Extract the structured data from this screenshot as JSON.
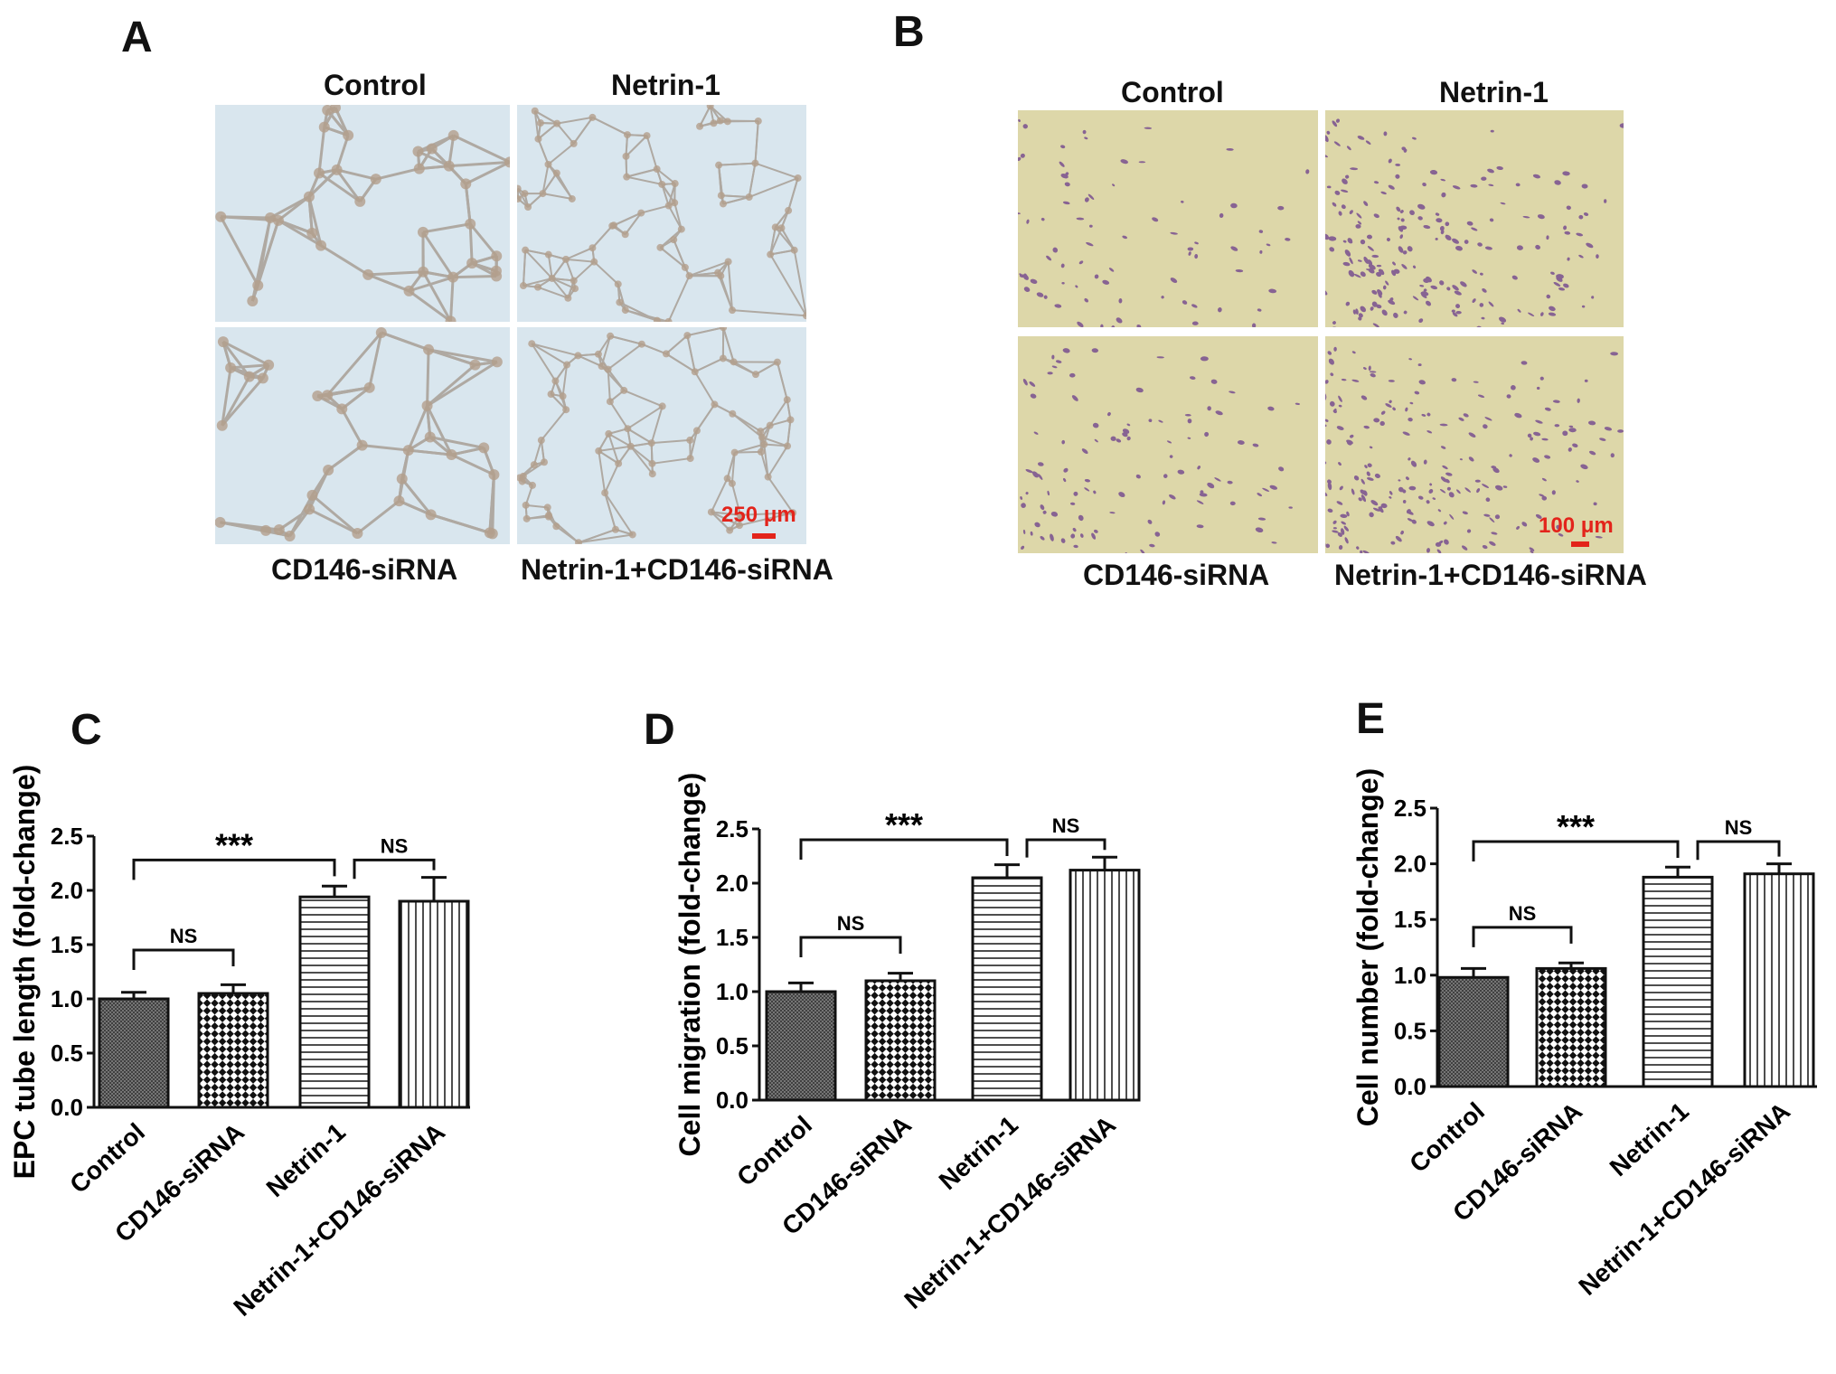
{
  "panels": {
    "A": {
      "letter": "A",
      "col_labels": [
        "Control",
        "Netrin-1"
      ],
      "row_labels": [
        "CD146-siRNA",
        "Netrin-1+CD146-siRNA"
      ],
      "scale_label": "250 μm",
      "tile_color": "#d9e6ee"
    },
    "B": {
      "letter": "B",
      "col_labels": [
        "Control",
        "Netrin-1"
      ],
      "row_labels": [
        "CD146-siRNA",
        "Netrin-1+CD146-siRNA"
      ],
      "scale_label": "100 μm",
      "tile_color": "#ddd7a9",
      "cell_color": "#6b3d8c"
    }
  },
  "chart_data": [
    {
      "letter": "C",
      "type": "bar",
      "ylabel": "EPC tube length (fold-change)",
      "categories": [
        "Control",
        "CD146-siRNA",
        "Netrin-1",
        "Netrin-1+CD146-siRNA"
      ],
      "values": [
        1.0,
        1.05,
        1.94,
        1.9
      ],
      "errors": [
        0.06,
        0.08,
        0.1,
        0.22
      ],
      "patterns": [
        "crosshatch-dense",
        "checker",
        "hlines",
        "vlines"
      ],
      "ylim": [
        0,
        2.5
      ],
      "yticks": [
        "0.0",
        "0.5",
        "1.0",
        "1.5",
        "2.0",
        "2.5"
      ],
      "annotations": [
        {
          "label": "***",
          "from": 0,
          "to": 2,
          "level": 2.28
        },
        {
          "label": "NS",
          "from": 0,
          "to": 1,
          "level": 1.45
        },
        {
          "label": "NS",
          "from": 2,
          "to": 3,
          "level": 2.28
        }
      ]
    },
    {
      "letter": "D",
      "type": "bar",
      "ylabel": "Cell migration (fold-change)",
      "categories": [
        "Control",
        "CD146-siRNA",
        "Netrin-1",
        "Netrin-1+CD146-siRNA"
      ],
      "values": [
        1.0,
        1.1,
        2.05,
        2.12
      ],
      "errors": [
        0.08,
        0.07,
        0.12,
        0.12
      ],
      "patterns": [
        "crosshatch-dense",
        "checker",
        "hlines",
        "vlines"
      ],
      "ylim": [
        0,
        2.5
      ],
      "yticks": [
        "0.0",
        "0.5",
        "1.0",
        "1.5",
        "2.0",
        "2.5"
      ],
      "annotations": [
        {
          "label": "***",
          "from": 0,
          "to": 2,
          "level": 2.4
        },
        {
          "label": "NS",
          "from": 0,
          "to": 1,
          "level": 1.5
        },
        {
          "label": "NS",
          "from": 2,
          "to": 3,
          "level": 2.4
        }
      ]
    },
    {
      "letter": "E",
      "type": "bar",
      "ylabel": "Cell number (fold-change)",
      "categories": [
        "Control",
        "CD146-siRNA",
        "Netrin-1",
        "Netrin-1+CD146-siRNA"
      ],
      "values": [
        0.98,
        1.06,
        1.88,
        1.91
      ],
      "errors": [
        0.08,
        0.05,
        0.09,
        0.09
      ],
      "patterns": [
        "crosshatch-dense",
        "checker",
        "hlines",
        "vlines"
      ],
      "ylim": [
        0,
        2.5
      ],
      "yticks": [
        "0.0",
        "0.5",
        "1.0",
        "1.5",
        "2.0",
        "2.5"
      ],
      "annotations": [
        {
          "label": "***",
          "from": 0,
          "to": 2,
          "level": 2.2
        },
        {
          "label": "NS",
          "from": 0,
          "to": 1,
          "level": 1.43
        },
        {
          "label": "NS",
          "from": 2,
          "to": 3,
          "level": 2.2
        }
      ]
    }
  ]
}
